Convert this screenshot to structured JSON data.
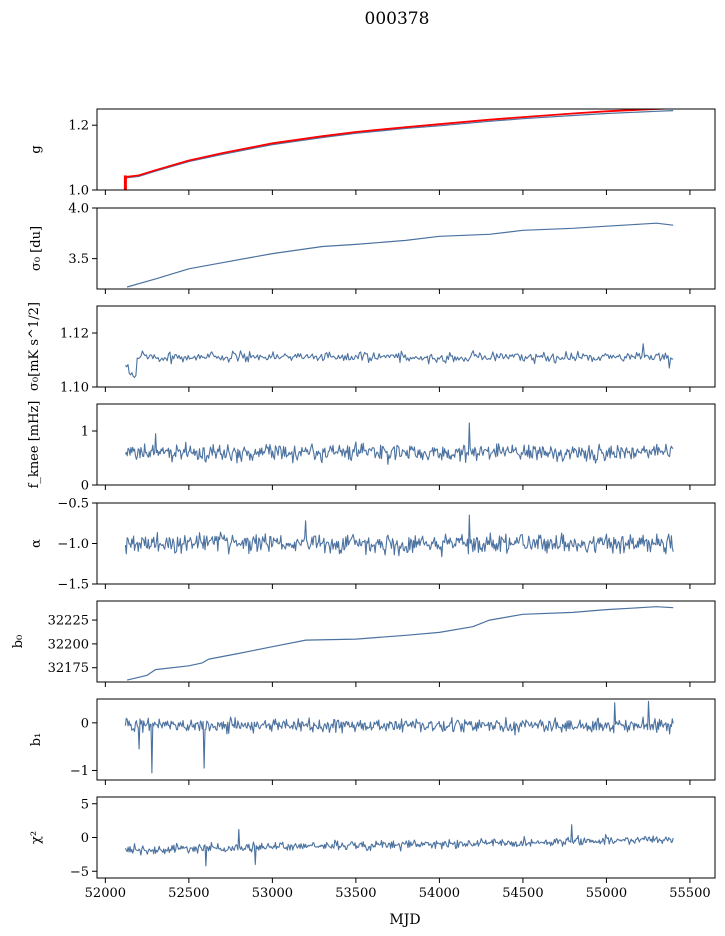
{
  "figure": {
    "title": "000378",
    "xlabel": "MJD",
    "xlim": [
      51950,
      55650
    ],
    "xticks": [
      52000,
      52500,
      53000,
      53500,
      54000,
      54500,
      55000,
      55500
    ],
    "line_color": "#4c72a0",
    "red_color": "#ff0000"
  },
  "chart_data": [
    {
      "type": "line",
      "panel": "g",
      "ylabel": "g",
      "ylim": [
        1.0,
        1.25
      ],
      "yticks": [
        1.0,
        1.2
      ],
      "ytick_labels": [
        "1.0",
        "1.2"
      ],
      "x": [
        52120,
        52200,
        52300,
        52500,
        52700,
        53000,
        53300,
        53500,
        53800,
        54000,
        54300,
        54500,
        54800,
        55000,
        55300,
        55400
      ],
      "series": [
        {
          "color": "#4c72a0",
          "values": [
            1.037,
            1.042,
            1.058,
            1.088,
            1.11,
            1.14,
            1.162,
            1.175,
            1.19,
            1.198,
            1.212,
            1.22,
            1.23,
            1.236,
            1.243,
            1.245
          ]
        },
        {
          "color": "#ff0000",
          "values": [
            1.04,
            1.045,
            1.061,
            1.091,
            1.114,
            1.144,
            1.166,
            1.179,
            1.194,
            1.203,
            1.217,
            1.225,
            1.236,
            1.243,
            1.25,
            1.252
          ]
        }
      ],
      "spikes": [
        {
          "x": 52120,
          "y_from": 1.0,
          "y_to": 1.045
        }
      ]
    },
    {
      "type": "line",
      "panel": "sigma0_du",
      "ylabel": "σ₀ [du]",
      "ylim": [
        3.2,
        4.0
      ],
      "yticks": [
        3.5,
        4.0
      ],
      "ytick_labels": [
        "3.5",
        "4.0"
      ],
      "x": [
        52130,
        52300,
        52500,
        52700,
        53000,
        53300,
        53500,
        53800,
        54000,
        54300,
        54500,
        54800,
        55000,
        55200,
        55300,
        55400
      ],
      "series": [
        {
          "values": [
            3.22,
            3.3,
            3.4,
            3.46,
            3.55,
            3.62,
            3.64,
            3.68,
            3.72,
            3.74,
            3.78,
            3.8,
            3.82,
            3.84,
            3.85,
            3.83
          ]
        }
      ]
    },
    {
      "type": "line",
      "panel": "sigma0_mK",
      "ylabel": "σ₀[mK s^1/2]",
      "ylim": [
        1.1,
        1.13
      ],
      "yticks": [
        1.1,
        1.12
      ],
      "ytick_labels": [
        "1.10",
        "1.12"
      ],
      "x_range": [
        52120,
        55400
      ],
      "base": 1.111,
      "noise": 0.0015,
      "start_values": [
        1.108,
        1.105,
        1.104
      ],
      "bumps": [
        {
          "x": 55220,
          "y": 1.116
        },
        {
          "x": 55380,
          "y": 1.107
        }
      ]
    },
    {
      "type": "line",
      "panel": "fknee",
      "ylabel": "f_knee [mHz]",
      "ylim": [
        0,
        1.5
      ],
      "yticks": [
        0,
        1
      ],
      "ytick_labels": [
        "0",
        "1"
      ],
      "x_range": [
        52120,
        55400
      ],
      "base": 0.6,
      "noise": 0.13,
      "peaks": [
        {
          "x": 54180,
          "y": 1.15
        },
        {
          "x": 52300,
          "y": 0.95
        }
      ]
    },
    {
      "type": "line",
      "panel": "alpha",
      "ylabel": "α",
      "ylim": [
        -1.5,
        -0.5
      ],
      "yticks": [
        -1.5,
        -1.0,
        -0.5
      ],
      "ytick_labels": [
        "−1.5",
        "−1.0",
        "−0.5"
      ],
      "x_range": [
        52120,
        55400
      ],
      "base": -1.0,
      "noise": 0.1,
      "peaks": [
        {
          "x": 54180,
          "y": -0.65
        },
        {
          "x": 53200,
          "y": -0.72
        }
      ]
    },
    {
      "type": "line",
      "panel": "b0",
      "ylabel": "b₀",
      "ylim": [
        32160,
        32245
      ],
      "yticks": [
        32175,
        32200,
        32225
      ],
      "ytick_labels": [
        "32175",
        "32200",
        "32225"
      ],
      "x": [
        52130,
        52250,
        52300,
        52500,
        52580,
        52620,
        52800,
        53000,
        53200,
        53500,
        53800,
        54000,
        54200,
        54300,
        54500,
        54800,
        55000,
        55200,
        55300,
        55400
      ],
      "series": [
        {
          "values": [
            32162,
            32167,
            32173,
            32177,
            32180,
            32184,
            32190,
            32197,
            32204,
            32205,
            32209,
            32212,
            32218,
            32225,
            32231,
            32233,
            32236,
            32238,
            32239,
            32238
          ]
        }
      ]
    },
    {
      "type": "line",
      "panel": "b1",
      "ylabel": "b₁",
      "ylim": [
        -1.2,
        0.5
      ],
      "yticks": [
        -1,
        0
      ],
      "ytick_labels": [
        "−1",
        "0"
      ],
      "x_range": [
        52120,
        55400
      ],
      "base": -0.05,
      "noise": 0.12,
      "dips": [
        {
          "x": 52280,
          "y": -1.05
        },
        {
          "x": 52590,
          "y": -0.95
        },
        {
          "x": 52200,
          "y": -0.55
        }
      ],
      "peaks": [
        {
          "x": 55250,
          "y": 0.45
        },
        {
          "x": 55050,
          "y": 0.42
        }
      ]
    },
    {
      "type": "line",
      "panel": "chi2",
      "ylabel": "χ²",
      "ylim": [
        -6,
        6
      ],
      "yticks": [
        -5,
        0,
        5
      ],
      "ytick_labels": [
        "−5",
        "0",
        "5"
      ],
      "x_range": [
        52120,
        55400
      ],
      "base_start": -1.8,
      "base_end": -0.3,
      "noise": 0.55,
      "peaks": [
        {
          "x": 54790,
          "y": 1.9
        },
        {
          "x": 52800,
          "y": 1.2
        }
      ],
      "dips": [
        {
          "x": 52600,
          "y": -4.2
        },
        {
          "x": 52900,
          "y": -4.0
        }
      ]
    }
  ]
}
